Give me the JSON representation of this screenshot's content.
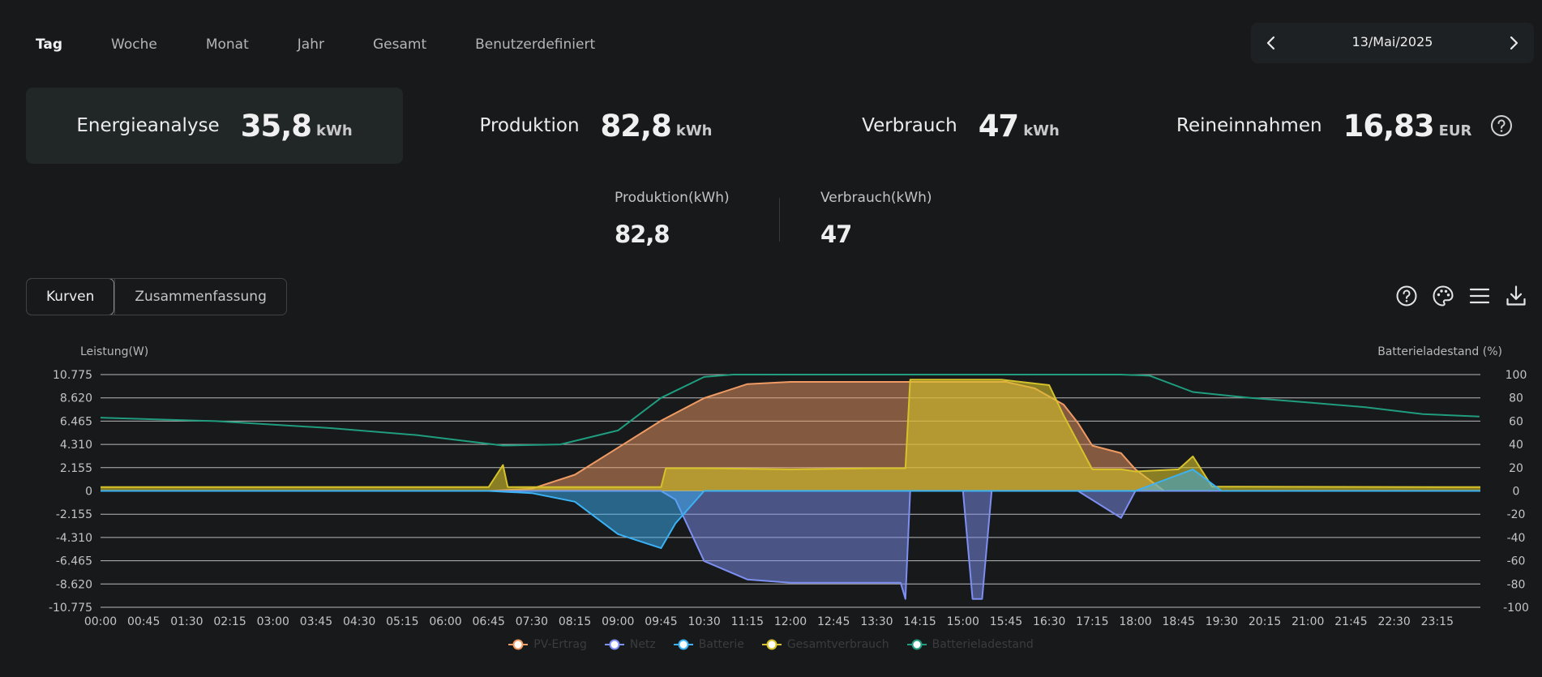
{
  "tabs": [
    "Tag",
    "Woche",
    "Monat",
    "Jahr",
    "Gesamt",
    "Benutzerdefiniert"
  ],
  "date": "13/Mai/2025",
  "cards": [
    {
      "label": "Energieanalyse",
      "value": "35,8",
      "unit": "kWh"
    },
    {
      "label": "Produktion",
      "value": "82,8",
      "unit": "kWh"
    },
    {
      "label": "Verbrauch",
      "value": "47",
      "unit": "kWh"
    },
    {
      "label": "Reineinnahmen",
      "value": "16,83",
      "unit": "EUR"
    }
  ],
  "summary": [
    {
      "label": "Produktion(kWh)",
      "value": "82,8"
    },
    {
      "label": "Verbrauch(kWh)",
      "value": "47"
    }
  ],
  "views": [
    "Kurven",
    "Zusammenfassung"
  ],
  "toolbar_icons": [
    "help-circle-icon",
    "palette-icon",
    "menu-icon",
    "download-icon"
  ],
  "colors": {
    "pv": "#f09b63",
    "netz": "#7d8ff0",
    "batterie": "#3ab2f5",
    "gesamt": "#d6c22a",
    "ladestand": "#1f9d7e"
  },
  "chart_data": {
    "type": "area",
    "ylabel": "Leistung(W)",
    "y2label": "Batterieladestand (%)",
    "ylim": [
      -10775,
      10775
    ],
    "y2lim": [
      -100,
      100
    ],
    "yticks": [
      "10.775",
      "8.620",
      "6.465",
      "4.310",
      "2.155",
      "0",
      "-2.155",
      "-4.310",
      "-6.465",
      "-8.620",
      "-10.775"
    ],
    "y2ticks": [
      "100",
      "80",
      "60",
      "40",
      "20",
      "0",
      "-20",
      "-40",
      "-60",
      "-80",
      "-100"
    ],
    "xticks": [
      "00:00",
      "00:45",
      "01:30",
      "02:15",
      "03:00",
      "03:45",
      "04:30",
      "05:15",
      "06:00",
      "06:45",
      "07:30",
      "08:15",
      "09:00",
      "09:45",
      "10:30",
      "11:15",
      "12:00",
      "12:45",
      "13:30",
      "14:15",
      "15:00",
      "15:45",
      "16:30",
      "17:15",
      "18:00",
      "18:45",
      "19:30",
      "20:15",
      "21:00",
      "21:45",
      "22:30",
      "23:15"
    ],
    "legend": [
      "PV-Ertrag",
      "Netz",
      "Batterie",
      "Gesamtverbrauch",
      "Batterieladestand"
    ],
    "legend_position": "bottom",
    "grid": true,
    "series": [
      {
        "name": "PV-Ertrag",
        "axis": "left",
        "x": [
          "00:00",
          "06:45",
          "07:30",
          "08:15",
          "09:00",
          "09:45",
          "10:30",
          "11:15",
          "12:00",
          "13:30",
          "14:15",
          "15:00",
          "15:45",
          "16:15",
          "16:45",
          "17:00",
          "17:15",
          "17:45",
          "18:00",
          "18:30",
          "19:00",
          "24:00"
        ],
        "values": [
          0,
          0,
          200,
          1500,
          4000,
          6500,
          8600,
          9900,
          10100,
          10100,
          10100,
          10100,
          10100,
          9500,
          8000,
          6300,
          4200,
          3500,
          2000,
          0,
          0,
          0
        ]
      },
      {
        "name": "Gesamtverbrauch",
        "axis": "left",
        "x": [
          "00:00",
          "06:45",
          "07:00",
          "07:05",
          "07:30",
          "09:45",
          "09:50",
          "10:30",
          "12:00",
          "13:30",
          "14:00",
          "14:05",
          "14:50",
          "15:40",
          "16:30",
          "16:45",
          "17:15",
          "17:45",
          "18:00",
          "18:45",
          "19:00",
          "19:20",
          "24:00"
        ],
        "values": [
          350,
          350,
          2400,
          350,
          350,
          350,
          2100,
          2100,
          2000,
          2100,
          2100,
          10300,
          10300,
          10300,
          9800,
          7000,
          2000,
          2000,
          1800,
          2000,
          3200,
          400,
          350
        ]
      },
      {
        "name": "Netz",
        "axis": "left",
        "x": [
          "00:00",
          "09:45",
          "10:00",
          "10:30",
          "11:15",
          "12:00",
          "13:30",
          "13:55",
          "14:00",
          "14:05",
          "15:00",
          "15:10",
          "15:20",
          "15:30",
          "17:00",
          "17:45",
          "18:00",
          "24:00"
        ],
        "values": [
          0,
          0,
          -800,
          -6500,
          -8200,
          -8500,
          -8500,
          -8500,
          -10000,
          0,
          0,
          -10000,
          -10000,
          0,
          0,
          -2500,
          0,
          0
        ]
      },
      {
        "name": "Batterie",
        "axis": "left",
        "x": [
          "00:00",
          "06:45",
          "07:30",
          "08:15",
          "09:00",
          "09:45",
          "10:00",
          "10:30",
          "18:00",
          "18:45",
          "19:00",
          "19:30",
          "24:00"
        ],
        "values": [
          0,
          0,
          -200,
          -1000,
          -4000,
          -5300,
          -3000,
          0,
          0,
          1500,
          2000,
          0,
          0
        ]
      },
      {
        "name": "Batterieladestand",
        "axis": "right",
        "x": [
          "00:00",
          "02:00",
          "04:00",
          "05:30",
          "06:30",
          "07:00",
          "08:00",
          "09:00",
          "09:45",
          "10:30",
          "11:00",
          "17:45",
          "18:15",
          "19:00",
          "20:00",
          "21:00",
          "22:00",
          "23:00",
          "23:59"
        ],
        "values": [
          63,
          60,
          54,
          48,
          42,
          39,
          40,
          52,
          80,
          98,
          100,
          100,
          99,
          85,
          80,
          76,
          72,
          66,
          64
        ]
      }
    ]
  }
}
